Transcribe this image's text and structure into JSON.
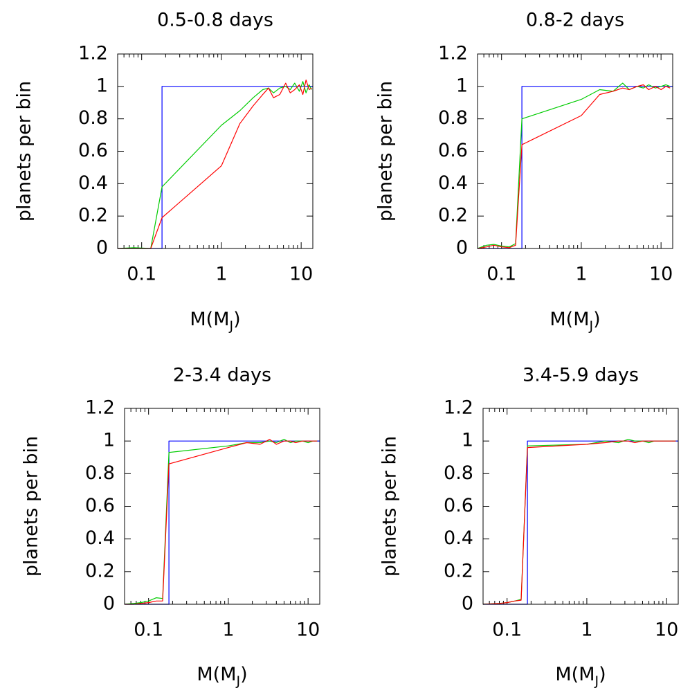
{
  "figure": {
    "ylabel": "planets per bin",
    "xlabel_main": "M(M",
    "xlabel_sub": "J",
    "xlabel_close": ")",
    "x_tick_labels": [
      "0.1",
      "1",
      "10"
    ],
    "y_tick_labels": [
      "0",
      "0.2",
      "0.4",
      "0.6",
      "0.8",
      "1",
      "1.2"
    ]
  },
  "chart_data": [
    {
      "type": "line",
      "title": "0.5-0.8 days",
      "xlabel": "M(MJ)",
      "ylabel": "planets per bin",
      "xscale": "log",
      "xlim": [
        0.05,
        14
      ],
      "ylim": [
        0,
        1.2
      ],
      "grid": false,
      "series": [
        {
          "color": "#0000ff",
          "x": [
            0.05,
            0.18,
            0.18,
            14
          ],
          "y": [
            0,
            0,
            1,
            1
          ]
        },
        {
          "color": "#00cc00",
          "x": [
            0.05,
            0.08,
            0.13,
            0.18,
            1.0,
            1.7,
            2.5,
            3.3,
            3.9,
            4.5,
            5.4,
            6.4,
            7.3,
            8.3,
            9.5,
            10.5,
            11.5,
            12.6,
            13.5
          ],
          "y": [
            0,
            0.005,
            0,
            0.38,
            0.76,
            0.85,
            0.93,
            0.98,
            0.99,
            0.96,
            0.99,
            1.0,
            0.98,
            1.02,
            0.97,
            1.03,
            0.96,
            1.01,
            0.98
          ]
        },
        {
          "color": "#ff0000",
          "x": [
            0.05,
            0.08,
            0.13,
            0.18,
            1.0,
            1.7,
            2.5,
            3.3,
            3.9,
            4.5,
            5.4,
            6.4,
            7.3,
            8.3,
            9.5,
            10.5,
            11.5,
            12.6,
            13.5
          ],
          "y": [
            0,
            0,
            0,
            0.19,
            0.51,
            0.77,
            0.88,
            0.95,
            0.99,
            0.93,
            0.95,
            1.02,
            0.96,
            0.98,
            1.01,
            0.95,
            1.04,
            0.98,
            0.99
          ]
        }
      ]
    },
    {
      "type": "line",
      "title": "0.8-2 days",
      "xlabel": "M(MJ)",
      "ylabel": "planets per bin",
      "xscale": "log",
      "xlim": [
        0.05,
        14
      ],
      "ylim": [
        0,
        1.2
      ],
      "grid": false,
      "series": [
        {
          "color": "#0000ff",
          "x": [
            0.05,
            0.18,
            0.18,
            14
          ],
          "y": [
            0,
            0,
            1,
            1
          ]
        },
        {
          "color": "#00cc00",
          "x": [
            0.05,
            0.065,
            0.08,
            0.1,
            0.125,
            0.15,
            0.18,
            1.0,
            1.7,
            2.5,
            3.3,
            4.0,
            5.0,
            6.0,
            7.0,
            8.5,
            10.0,
            11.5,
            13.0
          ],
          "y": [
            0,
            0.02,
            0.025,
            0.015,
            0.01,
            0.03,
            0.8,
            0.92,
            0.98,
            0.97,
            1.02,
            0.98,
            1.0,
            0.99,
            1.01,
            0.99,
            1.0,
            1.01,
            1.0
          ]
        },
        {
          "color": "#ff0000",
          "x": [
            0.05,
            0.065,
            0.08,
            0.1,
            0.125,
            0.15,
            0.18,
            1.0,
            1.7,
            2.5,
            3.3,
            4.0,
            5.0,
            6.0,
            7.0,
            8.5,
            10.0,
            11.5,
            13.0
          ],
          "y": [
            0,
            0.01,
            0.02,
            0.01,
            0.005,
            0.02,
            0.64,
            0.82,
            0.95,
            0.97,
            0.99,
            0.98,
            1.0,
            1.01,
            0.98,
            1.0,
            0.98,
            1.0,
            0.99
          ]
        }
      ]
    },
    {
      "type": "line",
      "title": "2-3.4 days",
      "xlabel": "M(MJ)",
      "ylabel": "planets per bin",
      "xscale": "log",
      "xlim": [
        0.05,
        14
      ],
      "ylim": [
        0,
        1.2
      ],
      "grid": false,
      "series": [
        {
          "color": "#0000ff",
          "x": [
            0.05,
            0.18,
            0.18,
            14
          ],
          "y": [
            0,
            0,
            1,
            1
          ]
        },
        {
          "color": "#00cc00",
          "x": [
            0.05,
            0.065,
            0.08,
            0.1,
            0.125,
            0.15,
            0.18,
            1.0,
            1.7,
            2.5,
            3.3,
            4.0,
            5.0,
            6.0,
            7.0,
            8.5,
            10.0,
            11.5,
            13.0
          ],
          "y": [
            0,
            0.005,
            0.01,
            0.02,
            0.04,
            0.035,
            0.93,
            0.97,
            0.99,
            0.99,
            1.0,
            0.99,
            1.01,
            0.99,
            1.0,
            1.0,
            0.99,
            1.0,
            1.0
          ]
        },
        {
          "color": "#ff0000",
          "x": [
            0.05,
            0.065,
            0.08,
            0.1,
            0.125,
            0.15,
            0.18,
            1.0,
            1.7,
            2.5,
            3.3,
            4.0,
            5.0,
            6.0,
            7.0,
            8.5,
            10.0,
            11.5,
            13.0
          ],
          "y": [
            0,
            0,
            0.005,
            0.01,
            0.02,
            0.02,
            0.86,
            0.96,
            0.99,
            0.98,
            1.01,
            0.98,
            1.0,
            1.0,
            0.99,
            1.0,
            1.0,
            1.0,
            1.0
          ]
        }
      ]
    },
    {
      "type": "line",
      "title": "3.4-5.9 days",
      "xlabel": "M(MJ)",
      "ylabel": "planets per bin",
      "xscale": "log",
      "xlim": [
        0.05,
        14
      ],
      "ylim": [
        0,
        1.2
      ],
      "grid": false,
      "series": [
        {
          "color": "#0000ff",
          "x": [
            0.05,
            0.18,
            0.18,
            14
          ],
          "y": [
            0,
            0,
            1,
            1
          ]
        },
        {
          "color": "#00cc00",
          "x": [
            0.05,
            0.08,
            0.1,
            0.125,
            0.15,
            0.18,
            1.0,
            1.7,
            2.5,
            3.3,
            4.0,
            5.0,
            6.0,
            7.0,
            8.5,
            10.0,
            11.5,
            13.0
          ],
          "y": [
            0,
            0.005,
            0.01,
            0.02,
            0.03,
            0.97,
            0.98,
            1.0,
            0.99,
            1.01,
            1.0,
            1.0,
            0.99,
            1.0,
            1.0,
            1.0,
            1.0,
            1.0
          ]
        },
        {
          "color": "#ff0000",
          "x": [
            0.05,
            0.08,
            0.1,
            0.125,
            0.15,
            0.18,
            1.0,
            1.7,
            2.5,
            3.3,
            4.0,
            5.0,
            6.0,
            7.0,
            8.5,
            10.0,
            11.5,
            13.0
          ],
          "y": [
            0,
            0.005,
            0.01,
            0.02,
            0.025,
            0.96,
            0.98,
            0.99,
            1.0,
            1.0,
            0.99,
            1.0,
            1.0,
            1.0,
            1.0,
            1.0,
            1.0,
            1.0
          ]
        }
      ]
    }
  ]
}
